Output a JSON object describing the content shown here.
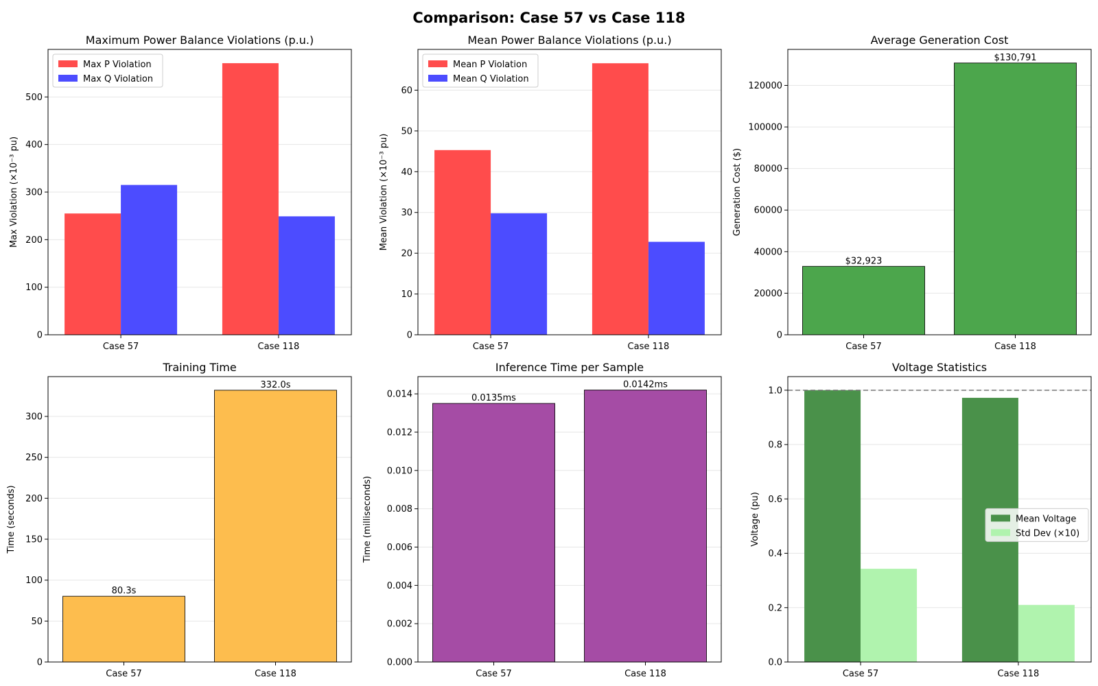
{
  "suptitle": "Comparison: Case 57 vs Case 118",
  "colors": {
    "p_violation": "#ff4c4c",
    "q_violation": "#4c4cff",
    "cost": "#4ca64c",
    "training": "#fdbd4e",
    "inference": "#a54ca5",
    "mean_voltage": "#4a914a",
    "std_dev": "#b0f3ae",
    "grid": "#e6e6e6",
    "reference_line": "#7f7f7f"
  },
  "chart_data": [
    {
      "id": "max-violation",
      "type": "bar",
      "title": "Maximum Power Balance Violations (p.u.)",
      "xlabel": "",
      "ylabel": "Max Violation (×10⁻³ pu)",
      "categories": [
        "Case 57",
        "Case 118"
      ],
      "series": [
        {
          "name": "Max P Violation",
          "values": [
            255,
            571
          ],
          "color": "#ff4c4c"
        },
        {
          "name": "Max Q Violation",
          "values": [
            315,
            249
          ],
          "color": "#4c4cff"
        }
      ],
      "ylim": [
        0,
        600
      ],
      "yticks": [
        0,
        100,
        200,
        300,
        400,
        500
      ],
      "ytick_labels": [
        "0",
        "100",
        "200",
        "300",
        "400",
        "500"
      ],
      "grid": "y",
      "legend": "upper-left"
    },
    {
      "id": "mean-violation",
      "type": "bar",
      "title": "Mean Power Balance Violations (p.u.)",
      "xlabel": "",
      "ylabel": "Mean Violation (×10⁻³ pu)",
      "categories": [
        "Case 57",
        "Case 118"
      ],
      "series": [
        {
          "name": "Mean P Violation",
          "values": [
            45.3,
            66.6
          ],
          "color": "#ff4c4c"
        },
        {
          "name": "Mean Q Violation",
          "values": [
            29.8,
            22.8
          ],
          "color": "#4c4cff"
        }
      ],
      "ylim": [
        0,
        70
      ],
      "yticks": [
        0,
        10,
        20,
        30,
        40,
        50,
        60
      ],
      "ytick_labels": [
        "0",
        "10",
        "20",
        "30",
        "40",
        "50",
        "60"
      ],
      "grid": "y",
      "legend": "upper-left"
    },
    {
      "id": "generation-cost",
      "type": "bar",
      "title": "Average Generation Cost",
      "xlabel": "",
      "ylabel": "Generation Cost ($)",
      "categories": [
        "Case 57",
        "Case 118"
      ],
      "values": [
        32923,
        130791
      ],
      "data_labels": [
        "$32,923",
        "$130,791"
      ],
      "color": "#4ca64c",
      "ylim": [
        0,
        137330
      ],
      "yticks": [
        0,
        20000,
        40000,
        60000,
        80000,
        100000,
        120000
      ],
      "ytick_labels": [
        "0",
        "20000",
        "40000",
        "60000",
        "80000",
        "100000",
        "120000"
      ],
      "grid": "y"
    },
    {
      "id": "training-time",
      "type": "bar",
      "title": "Training Time",
      "xlabel": "",
      "ylabel": "Time (seconds)",
      "categories": [
        "Case 57",
        "Case 118"
      ],
      "values": [
        80.3,
        332.0
      ],
      "data_labels": [
        "80.3s",
        "332.0s"
      ],
      "color": "#fdbd4e",
      "ylim": [
        0,
        348.6
      ],
      "yticks": [
        0,
        50,
        100,
        150,
        200,
        250,
        300
      ],
      "ytick_labels": [
        "0",
        "50",
        "100",
        "150",
        "200",
        "250",
        "300"
      ],
      "grid": "y"
    },
    {
      "id": "inference-time",
      "type": "bar",
      "title": "Inference Time per Sample",
      "xlabel": "",
      "ylabel": "Time (milliseconds)",
      "categories": [
        "Case 57",
        "Case 118"
      ],
      "values": [
        0.0135,
        0.0142
      ],
      "data_labels": [
        "0.0135ms",
        "0.0142ms"
      ],
      "color": "#a54ca5",
      "ylim": [
        0,
        0.0149
      ],
      "yticks": [
        0,
        0.002,
        0.004,
        0.006,
        0.008,
        0.01,
        0.012,
        0.014
      ],
      "ytick_labels": [
        "0.000",
        "0.002",
        "0.004",
        "0.006",
        "0.008",
        "0.010",
        "0.012",
        "0.014"
      ],
      "grid": "y"
    },
    {
      "id": "voltage-statistics",
      "type": "bar",
      "title": "Voltage Statistics",
      "xlabel": "",
      "ylabel": "Voltage (pu)",
      "categories": [
        "Case 57",
        "Case 118"
      ],
      "series": [
        {
          "name": "Mean Voltage",
          "values": [
            1.0,
            0.972
          ],
          "color": "#4a914a"
        },
        {
          "name": "Std Dev (×10)",
          "values": [
            0.343,
            0.21
          ],
          "color": "#b0f3ae"
        }
      ],
      "reference_line": 1.0,
      "ylim": [
        0,
        1.05
      ],
      "yticks": [
        0,
        0.2,
        0.4,
        0.6,
        0.8,
        1.0
      ],
      "ytick_labels": [
        "0.0",
        "0.2",
        "0.4",
        "0.6",
        "0.8",
        "1.0"
      ],
      "grid": "y",
      "legend": "center-right"
    }
  ]
}
